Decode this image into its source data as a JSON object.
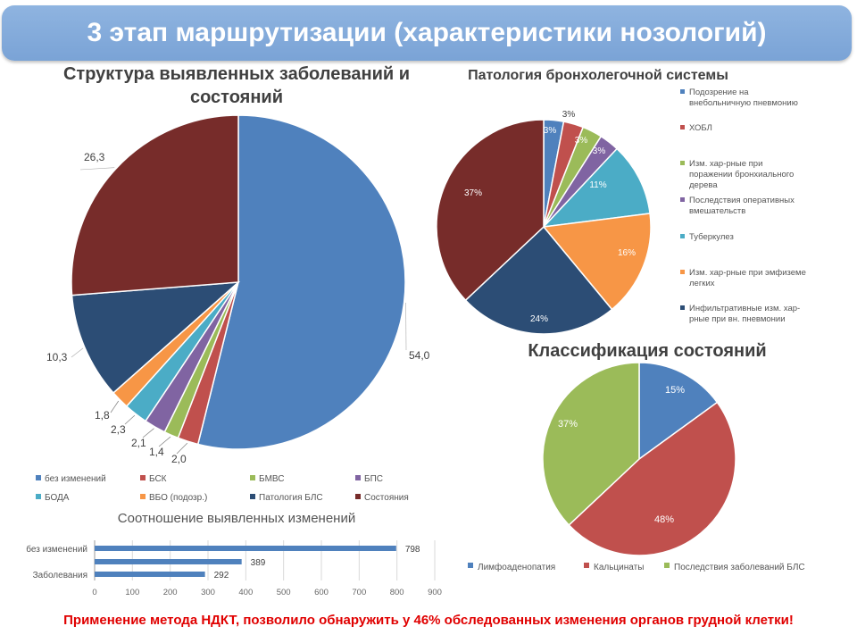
{
  "header": {
    "title": "3 этап маршрутизации (характеристики нозологий)"
  },
  "footer": {
    "text": "Применение метода НДКТ, позволило обнаружить у 46% обследованных изменения органов грудной клетки!"
  },
  "colors": {
    "header_bg": "#7aa3d6",
    "footer_text": "#e00000"
  },
  "chart_data": [
    {
      "type": "pie",
      "title": "Структура выявленных заболеваний и состояний",
      "categories": [
        "без изменений",
        "БСК",
        "БМВС",
        "БПС",
        "БОДА",
        "ВБО (подозр.)",
        "Патология БЛС",
        "Состояния"
      ],
      "values": [
        54.0,
        2.0,
        1.4,
        2.1,
        2.3,
        1.8,
        10.3,
        26.3
      ],
      "labels": [
        "54,0",
        "2,0",
        "1,4",
        "2,1",
        "2,3",
        "1,8",
        "10,3",
        "26,3"
      ],
      "colors": [
        "#4f81bd",
        "#c0504d",
        "#9bbb59",
        "#8064a2",
        "#4bacc6",
        "#f79646",
        "#2c4d75",
        "#772c2a"
      ],
      "legend": "bottom"
    },
    {
      "type": "pie",
      "title": "Патология бронхолегочной системы",
      "categories": [
        "Подозрение на внебольничную пневмонию",
        "ХОБЛ",
        "Изм. хар-рные при поражении бронхиального дерева",
        "Последствия оперативных вмешательств",
        "Туберкулез",
        "Изм. хар-рные при эмфиземе легких",
        "Инфильтративные изм. хар-рные при вн. пневмонии",
        ""
      ],
      "values": [
        3,
        3,
        3,
        3,
        11,
        16,
        24,
        37
      ],
      "labels": [
        "3%",
        "3%",
        "3%",
        "3%",
        "11%",
        "16%",
        "24%",
        "37%"
      ],
      "colors": [
        "#4f81bd",
        "#c0504d",
        "#9bbb59",
        "#8064a2",
        "#4bacc6",
        "#f79646",
        "#2c4d75",
        "#772c2a"
      ],
      "legend": "right"
    },
    {
      "type": "pie",
      "title": "Классификация состояний",
      "categories": [
        "Лимфоаденопатия",
        "Кальцинаты",
        "Последствия заболеваний БЛС"
      ],
      "values": [
        15,
        48,
        37
      ],
      "labels": [
        "15%",
        "48%",
        "37%"
      ],
      "colors": [
        "#4f81bd",
        "#c0504d",
        "#9bbb59"
      ],
      "legend": "bottom"
    },
    {
      "type": "bar",
      "orientation": "horizontal",
      "title": "Соотношение выявленных изменений",
      "categories": [
        "без изменений",
        "",
        "Заболевания"
      ],
      "values": [
        798,
        389,
        292
      ],
      "labels": [
        "798",
        "389",
        "292"
      ],
      "xlim": [
        0,
        900
      ],
      "xticks": [
        "0",
        "100",
        "200",
        "300",
        "400",
        "500",
        "600",
        "700",
        "800",
        "900"
      ],
      "color": "#4f81bd",
      "grid": true
    }
  ]
}
